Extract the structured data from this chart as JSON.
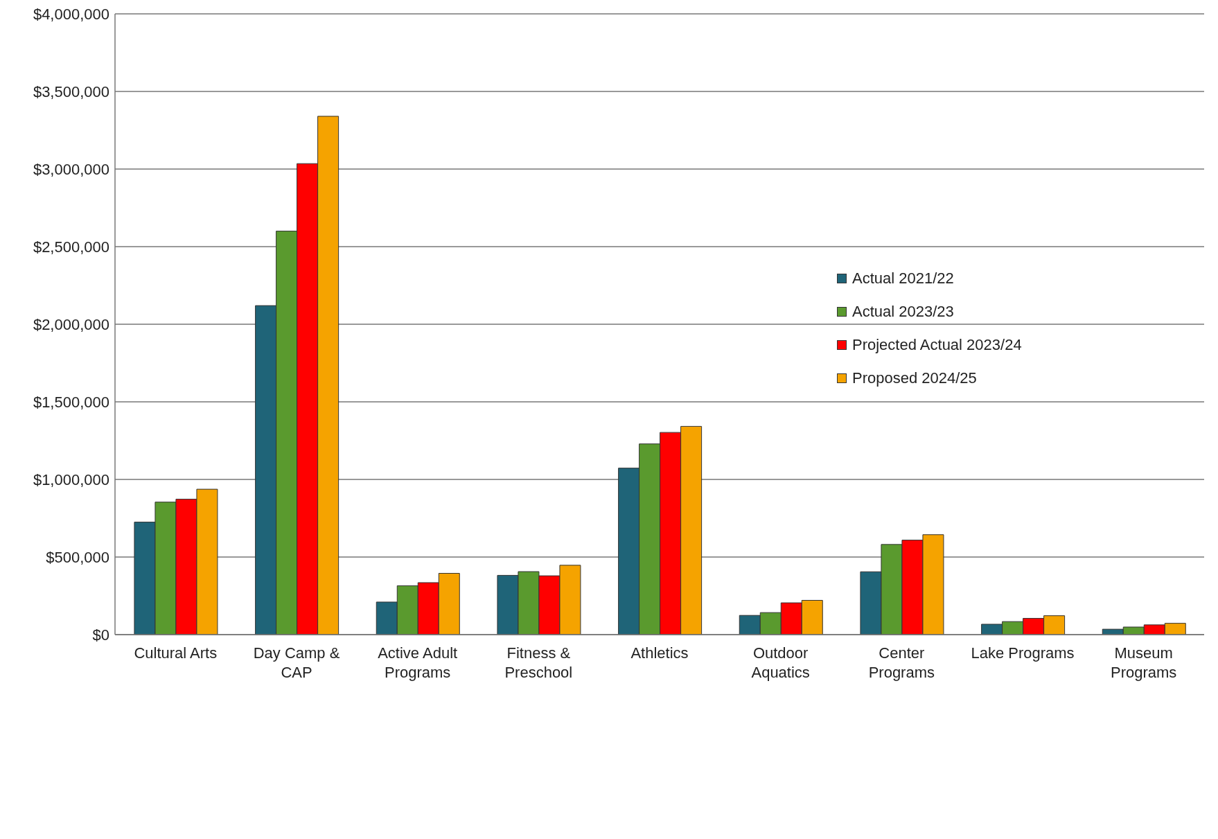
{
  "chart_data": {
    "type": "bar",
    "categories": [
      "Cultural Arts",
      "Day Camp & CAP",
      "Active Adult Programs",
      "Fitness & Preschool",
      "Athletics",
      "Outdoor Aquatics",
      "Center Programs",
      "Lake Programs",
      "Museum Programs"
    ],
    "series": [
      {
        "name": "Actual 2021/22",
        "color": "#1f6478",
        "values": [
          725000,
          2120000,
          210000,
          382000,
          1073000,
          124000,
          405000,
          67000,
          35000
        ]
      },
      {
        "name": "Actual 2023/23",
        "color": "#5a9a2e",
        "values": [
          854000,
          2600000,
          315000,
          406000,
          1229000,
          142000,
          581000,
          84000,
          49000
        ]
      },
      {
        "name": "Projected Actual 2023/24",
        "color": "#ff0000",
        "values": [
          873000,
          3035000,
          335000,
          379000,
          1303000,
          205000,
          609000,
          105000,
          63000
        ]
      },
      {
        "name": "Proposed 2024/25",
        "color": "#f5a300",
        "values": [
          937000,
          3340000,
          395000,
          447000,
          1342000,
          221000,
          644000,
          122000,
          73000
        ]
      }
    ],
    "ylim": [
      0,
      4000000
    ],
    "yticks": [
      {
        "value": 0,
        "label": "$0"
      },
      {
        "value": 500000,
        "label": "$500,000"
      },
      {
        "value": 1000000,
        "label": "$1,000,000"
      },
      {
        "value": 1500000,
        "label": "$1,500,000"
      },
      {
        "value": 2000000,
        "label": "$2,000,000"
      },
      {
        "value": 2500000,
        "label": "$2,500,000"
      },
      {
        "value": 3000000,
        "label": "$3,000,000"
      },
      {
        "value": 3500000,
        "label": "$3,500,000"
      },
      {
        "value": 4000000,
        "label": "$4,000,000"
      }
    ],
    "grid": "y",
    "legend": "right"
  }
}
